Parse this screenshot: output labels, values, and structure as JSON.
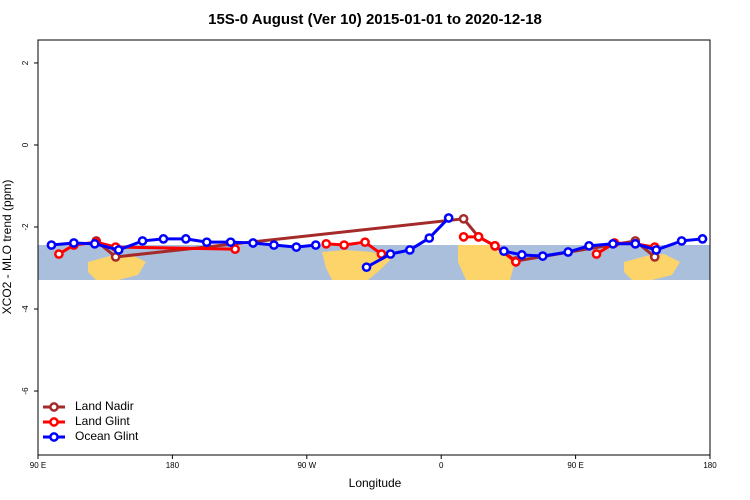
{
  "chart_data": {
    "type": "line",
    "title": "15S-0 August (Ver 10)   2015-01-01 to 2020-12-18",
    "x_label": "Longitude",
    "y_label": "XCO2 - MLO trend (ppm)",
    "xlim": [
      90,
      540
    ],
    "xticks": [
      {
        "value": 90,
        "label": "90 E"
      },
      {
        "value": 180,
        "label": "180"
      },
      {
        "value": 270,
        "label": "90 W"
      },
      {
        "value": 360,
        "label": "0"
      },
      {
        "value": 450,
        "label": "90 E"
      },
      {
        "value": 540,
        "label": "180"
      }
    ],
    "ylim": [
      -7.56,
      2.56
    ],
    "yticks": [
      -6,
      -4,
      -2,
      0,
      2
    ],
    "legend": "bottom-left",
    "series": [
      {
        "name": "Land Nadir",
        "color": "#a52a2a",
        "x": [
          129,
          142,
          375,
          385,
          396,
          410,
          490,
          503
        ],
        "values": [
          -2.34,
          -2.73,
          -1.8,
          -2.24,
          -2.46,
          -2.83,
          -2.34,
          -2.73
        ]
      },
      {
        "name": "Land Glint",
        "color": "#ff0000",
        "x": [
          104,
          114,
          129,
          142,
          222,
          250,
          283,
          295,
          309,
          320,
          350,
          375,
          385,
          396,
          410,
          440,
          464,
          476,
          490,
          503
        ],
        "values": [
          -2.66,
          -2.44,
          -2.37,
          -2.49,
          -2.54,
          null,
          -2.41,
          -2.44,
          -2.37,
          -2.66,
          null,
          -2.24,
          -2.24,
          -2.46,
          -2.85,
          null,
          -2.66,
          -2.39,
          -2.41,
          -2.49
        ]
      },
      {
        "name": "Ocean Glint",
        "color": "#0000ff",
        "x": [
          99,
          114,
          128,
          144,
          160,
          174,
          189,
          203,
          219,
          234,
          248,
          263,
          276,
          295,
          310,
          326,
          339,
          352,
          365,
          385,
          402,
          414,
          428,
          445,
          459,
          475,
          490,
          504,
          521,
          535
        ],
        "values": [
          -2.44,
          -2.39,
          -2.41,
          -2.56,
          -2.34,
          -2.29,
          -2.29,
          -2.37,
          -2.37,
          -2.39,
          -2.44,
          -2.49,
          -2.44,
          null,
          -2.98,
          -2.66,
          -2.56,
          -2.27,
          -1.78,
          null,
          -2.59,
          -2.68,
          -2.71,
          -2.61,
          -2.46,
          -2.41,
          -2.41,
          -2.56,
          -2.34,
          -2.29
        ]
      }
    ]
  }
}
